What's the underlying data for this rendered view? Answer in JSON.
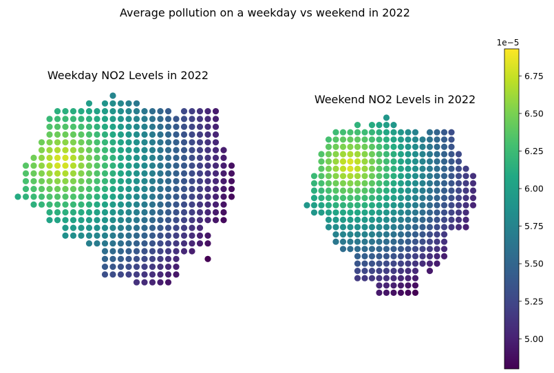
{
  "figure": {
    "suptitle": "Average pollution on a weekday vs weekend in 2022"
  },
  "chart_data": [
    {
      "type": "scatter",
      "title": "Weekday NO2 Levels in 2022",
      "xlabel": "",
      "ylabel": "",
      "axes_visible": false,
      "value_field": "NO2 level (×1e-5)",
      "value_range": [
        4.8,
        6.9
      ],
      "hotspot": {
        "col": 5.5,
        "row": 8.5
      },
      "rows": [
        {
          "row": 0,
          "cols": [
            [
              12,
              12
            ]
          ]
        },
        {
          "row": 1,
          "cols": [
            [
              9,
              9
            ],
            [
              11,
              15
            ]
          ]
        },
        {
          "row": 2,
          "cols": [
            [
              5,
              19
            ],
            [
              21,
              25
            ]
          ]
        },
        {
          "row": 3,
          "cols": [
            [
              4,
              25
            ]
          ]
        },
        {
          "row": 4,
          "cols": [
            [
              4,
              25
            ]
          ]
        },
        {
          "row": 5,
          "cols": [
            [
              4,
              25
            ]
          ]
        },
        {
          "row": 6,
          "cols": [
            [
              3,
              25
            ]
          ]
        },
        {
          "row": 7,
          "cols": [
            [
              3,
              26
            ]
          ]
        },
        {
          "row": 8,
          "cols": [
            [
              2,
              26
            ]
          ]
        },
        {
          "row": 9,
          "cols": [
            [
              1,
              27
            ]
          ]
        },
        {
          "row": 10,
          "cols": [
            [
              1,
              27
            ]
          ]
        },
        {
          "row": 11,
          "cols": [
            [
              1,
              27
            ]
          ]
        },
        {
          "row": 12,
          "cols": [
            [
              1,
              27
            ]
          ]
        },
        {
          "row": 13,
          "cols": [
            [
              0,
              27
            ]
          ]
        },
        {
          "row": 14,
          "cols": [
            [
              2,
              26
            ]
          ]
        },
        {
          "row": 15,
          "cols": [
            [
              4,
              26
            ]
          ]
        },
        {
          "row": 16,
          "cols": [
            [
              4,
              26
            ]
          ]
        },
        {
          "row": 17,
          "cols": [
            [
              6,
              23
            ]
          ]
        },
        {
          "row": 18,
          "cols": [
            [
              6,
              24
            ]
          ]
        },
        {
          "row": 19,
          "cols": [
            [
              9,
              24
            ]
          ]
        },
        {
          "row": 20,
          "cols": [
            [
              11,
              22
            ]
          ]
        },
        {
          "row": 21,
          "cols": [
            [
              11,
              20
            ],
            [
              24,
              24
            ]
          ]
        },
        {
          "row": 22,
          "cols": [
            [
              11,
              20
            ]
          ]
        },
        {
          "row": 23,
          "cols": [
            [
              11,
              20
            ]
          ]
        },
        {
          "row": 24,
          "cols": [
            [
              15,
              19
            ]
          ]
        }
      ]
    },
    {
      "type": "scatter",
      "title": "Weekend NO2 Levels in 2022",
      "xlabel": "",
      "ylabel": "",
      "axes_visible": false,
      "value_field": "NO2 level (×1e-5)",
      "value_range": [
        4.8,
        6.9
      ],
      "hotspot": {
        "col": 6.0,
        "row": 6.5
      },
      "rows": [
        {
          "row": 0,
          "cols": [
            [
              11,
              11
            ]
          ]
        },
        {
          "row": 1,
          "cols": [
            [
              7,
              7
            ],
            [
              9,
              12
            ]
          ]
        },
        {
          "row": 2,
          "cols": [
            [
              4,
              15
            ],
            [
              17,
              20
            ]
          ]
        },
        {
          "row": 3,
          "cols": [
            [
              3,
              20
            ]
          ]
        },
        {
          "row": 4,
          "cols": [
            [
              3,
              20
            ]
          ]
        },
        {
          "row": 5,
          "cols": [
            [
              2,
              21
            ]
          ]
        },
        {
          "row": 6,
          "cols": [
            [
              2,
              21
            ]
          ]
        },
        {
          "row": 7,
          "cols": [
            [
              2,
              22
            ]
          ]
        },
        {
          "row": 8,
          "cols": [
            [
              1,
              23
            ]
          ]
        },
        {
          "row": 9,
          "cols": [
            [
              1,
              23
            ]
          ]
        },
        {
          "row": 10,
          "cols": [
            [
              1,
              23
            ]
          ]
        },
        {
          "row": 11,
          "cols": [
            [
              1,
              23
            ]
          ]
        },
        {
          "row": 12,
          "cols": [
            [
              0,
              23
            ]
          ]
        },
        {
          "row": 13,
          "cols": [
            [
              1,
              22
            ]
          ]
        },
        {
          "row": 14,
          "cols": [
            [
              3,
              22
            ]
          ]
        },
        {
          "row": 15,
          "cols": [
            [
              3,
              22
            ]
          ]
        },
        {
          "row": 16,
          "cols": [
            [
              4,
              19
            ]
          ]
        },
        {
          "row": 17,
          "cols": [
            [
              4,
              19
            ]
          ]
        },
        {
          "row": 18,
          "cols": [
            [
              5,
              19
            ]
          ]
        },
        {
          "row": 19,
          "cols": [
            [
              7,
              19
            ]
          ]
        },
        {
          "row": 20,
          "cols": [
            [
              7,
              18
            ]
          ]
        },
        {
          "row": 21,
          "cols": [
            [
              7,
              15
            ],
            [
              17,
              17
            ]
          ]
        },
        {
          "row": 22,
          "cols": [
            [
              7,
              15
            ]
          ]
        },
        {
          "row": 23,
          "cols": [
            [
              10,
              15
            ]
          ]
        },
        {
          "row": 24,
          "cols": [
            [
              10,
              15
            ]
          ]
        }
      ]
    }
  ],
  "colorbar": {
    "colormap": "viridis",
    "range": [
      4.8,
      6.93
    ],
    "offset_label": "1e−5",
    "ticks": [
      {
        "value": 5.0,
        "label": "5.00"
      },
      {
        "value": 5.25,
        "label": "5.25"
      },
      {
        "value": 5.5,
        "label": "5.50"
      },
      {
        "value": 5.75,
        "label": "5.75"
      },
      {
        "value": 6.0,
        "label": "6.00"
      },
      {
        "value": 6.25,
        "label": "6.25"
      },
      {
        "value": 6.5,
        "label": "6.50"
      },
      {
        "value": 6.75,
        "label": "6.75"
      }
    ]
  }
}
